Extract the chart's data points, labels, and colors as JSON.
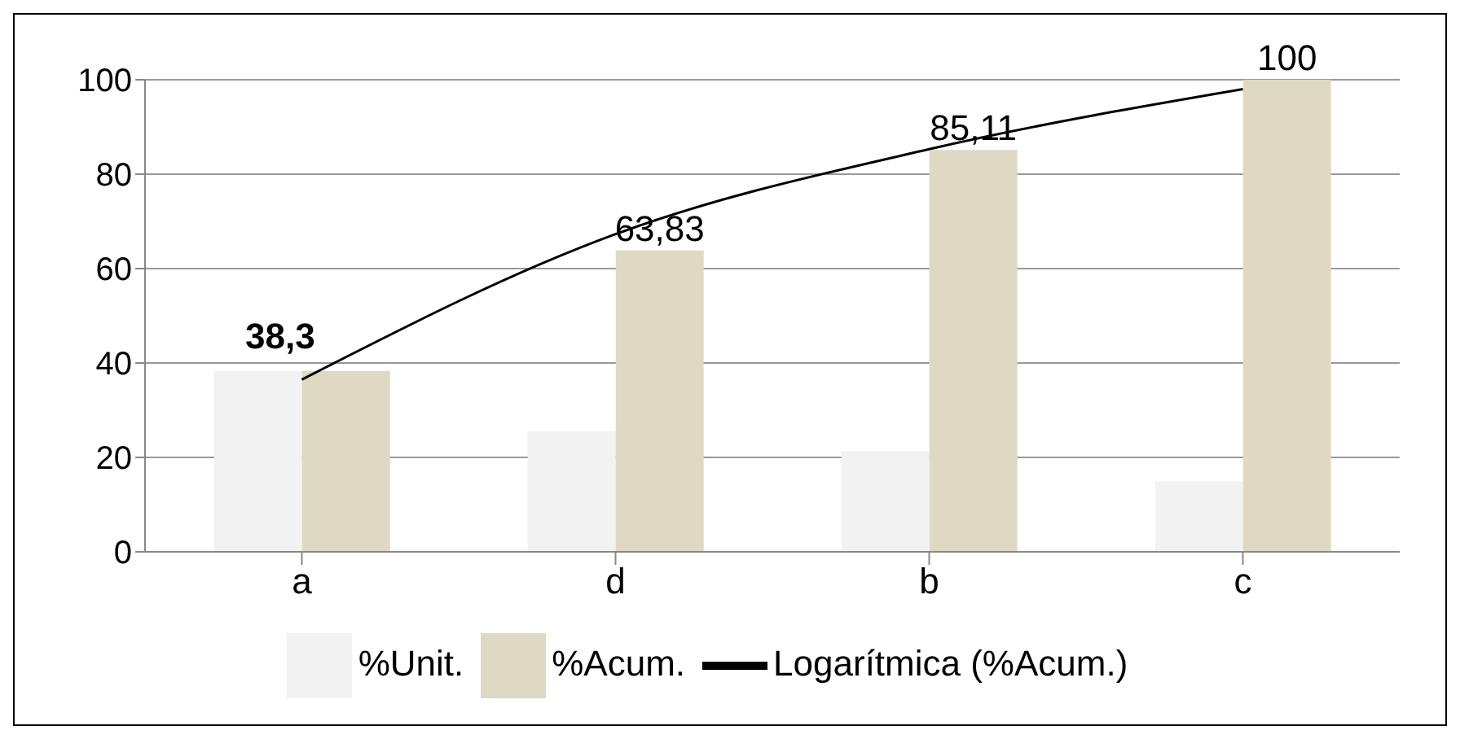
{
  "chart_data": {
    "type": "bar",
    "categories": [
      "a",
      "d",
      "b",
      "c"
    ],
    "series": [
      {
        "name": "%Unit.",
        "color": "#f2f2f2",
        "values": [
          38.3,
          25.5,
          21.3,
          14.9
        ]
      },
      {
        "name": "%Acum.",
        "color": "#ddd9c3",
        "values": [
          38.3,
          63.83,
          85.11,
          100
        ],
        "value_labels": [
          "38,3",
          "63,83",
          "85,11",
          "100"
        ]
      },
      {
        "name": "Logarítmica (%Acum.)",
        "type": "line",
        "color": "#000000",
        "values": [
          36.5,
          67.3,
          85.3,
          98
        ]
      }
    ],
    "ylim": [
      0,
      100
    ],
    "yticks": [
      0,
      20,
      40,
      60,
      80,
      100
    ],
    "grid": "y",
    "legend": "bottom",
    "marker": "none"
  }
}
